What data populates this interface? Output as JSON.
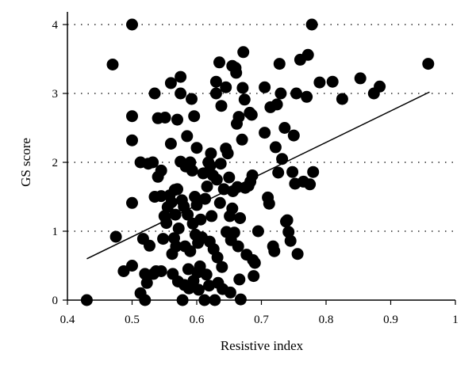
{
  "chart_data": {
    "type": "scatter",
    "xlabel": "Resistive index",
    "ylabel": "GS score",
    "xlim": [
      0.4,
      1.0
    ],
    "ylim": [
      0,
      4
    ],
    "x_ticks": [
      "0.4",
      "0.5",
      "0.6",
      "0.7",
      "0.8",
      "0.9",
      "1"
    ],
    "y_ticks": [
      "0",
      "1",
      "2",
      "3",
      "4"
    ],
    "grid": "horizontal dotted",
    "marker_color": "#000000",
    "trend_line": {
      "x1": 0.43,
      "y1": 0.6,
      "x2": 0.96,
      "y2": 3.02
    },
    "points": [
      [
        0.43,
        0.0
      ],
      [
        0.47,
        3.42
      ],
      [
        0.475,
        0.92
      ],
      [
        0.487,
        0.42
      ],
      [
        0.5,
        4.0
      ],
      [
        0.5,
        2.67
      ],
      [
        0.5,
        2.32
      ],
      [
        0.5,
        1.41
      ],
      [
        0.5,
        0.5
      ],
      [
        0.513,
        2.0
      ],
      [
        0.513,
        0.1
      ],
      [
        0.517,
        0.89
      ],
      [
        0.52,
        0.38
      ],
      [
        0.52,
        0.0
      ],
      [
        0.523,
        0.25
      ],
      [
        0.525,
        1.98
      ],
      [
        0.527,
        0.79
      ],
      [
        0.532,
        2.0
      ],
      [
        0.533,
        0.38
      ],
      [
        0.535,
        3.0
      ],
      [
        0.535,
        1.5
      ],
      [
        0.537,
        0.42
      ],
      [
        0.54,
        1.79
      ],
      [
        0.54,
        2.64
      ],
      [
        0.545,
        1.88
      ],
      [
        0.545,
        1.51
      ],
      [
        0.545,
        0.42
      ],
      [
        0.548,
        0.89
      ],
      [
        0.55,
        1.22
      ],
      [
        0.551,
        2.65
      ],
      [
        0.553,
        1.12
      ],
      [
        0.555,
        1.35
      ],
      [
        0.558,
        1.52
      ],
      [
        0.56,
        3.15
      ],
      [
        0.56,
        2.27
      ],
      [
        0.561,
        1.42
      ],
      [
        0.562,
        0.67
      ],
      [
        0.563,
        0.38
      ],
      [
        0.565,
        0.9
      ],
      [
        0.566,
        1.6
      ],
      [
        0.567,
        1.24
      ],
      [
        0.568,
        0.78
      ],
      [
        0.57,
        2.62
      ],
      [
        0.57,
        1.61
      ],
      [
        0.571,
        0.27
      ],
      [
        0.572,
        1.04
      ],
      [
        0.575,
        3.24
      ],
      [
        0.575,
        3.0
      ],
      [
        0.575,
        2.01
      ],
      [
        0.577,
        1.45
      ],
      [
        0.578,
        0.0
      ],
      [
        0.58,
        1.36
      ],
      [
        0.581,
        0.22
      ],
      [
        0.582,
        0.78
      ],
      [
        0.583,
        1.94
      ],
      [
        0.585,
        2.38
      ],
      [
        0.586,
        1.24
      ],
      [
        0.587,
        0.45
      ],
      [
        0.588,
        0.17
      ],
      [
        0.59,
        2.0
      ],
      [
        0.59,
        0.71
      ],
      [
        0.592,
        2.92
      ],
      [
        0.593,
        1.88
      ],
      [
        0.594,
        1.11
      ],
      [
        0.595,
        0.28
      ],
      [
        0.596,
        2.67
      ],
      [
        0.597,
        1.5
      ],
      [
        0.598,
        0.95
      ],
      [
        0.6,
        2.21
      ],
      [
        0.6,
        1.38
      ],
      [
        0.601,
        0.4
      ],
      [
        0.602,
        0.83
      ],
      [
        0.603,
        0.15
      ],
      [
        0.605,
        0.49
      ],
      [
        0.606,
        1.17
      ],
      [
        0.608,
        0.91
      ],
      [
        0.61,
        1.84
      ],
      [
        0.612,
        0.0
      ],
      [
        0.613,
        1.47
      ],
      [
        0.615,
        0.37
      ],
      [
        0.616,
        1.65
      ],
      [
        0.618,
        2.0
      ],
      [
        0.619,
        0.21
      ],
      [
        0.62,
        0.85
      ],
      [
        0.621,
        1.95
      ],
      [
        0.622,
        2.13
      ],
      [
        0.623,
        1.22
      ],
      [
        0.625,
        1.81
      ],
      [
        0.626,
        0.74
      ],
      [
        0.628,
        0.0
      ],
      [
        0.63,
        3.17
      ],
      [
        0.63,
        3.0
      ],
      [
        0.631,
        1.75
      ],
      [
        0.632,
        0.62
      ],
      [
        0.633,
        0.25
      ],
      [
        0.635,
        3.45
      ],
      [
        0.636,
        1.41
      ],
      [
        0.637,
        1.98
      ],
      [
        0.638,
        2.82
      ],
      [
        0.639,
        0.48
      ],
      [
        0.64,
        0.16
      ],
      [
        0.642,
        1.61
      ],
      [
        0.645,
        3.09
      ],
      [
        0.645,
        2.2
      ],
      [
        0.646,
        0.99
      ],
      [
        0.648,
        2.13
      ],
      [
        0.65,
        1.78
      ],
      [
        0.651,
        1.22
      ],
      [
        0.652,
        0.11
      ],
      [
        0.653,
        0.87
      ],
      [
        0.655,
        1.33
      ],
      [
        0.655,
        3.4
      ],
      [
        0.656,
        1.58
      ],
      [
        0.658,
        0.98
      ],
      [
        0.66,
        3.37
      ],
      [
        0.661,
        3.3
      ],
      [
        0.662,
        2.56
      ],
      [
        0.663,
        1.64
      ],
      [
        0.664,
        0.78
      ],
      [
        0.665,
        2.66
      ],
      [
        0.666,
        0.3
      ],
      [
        0.667,
        1.19
      ],
      [
        0.668,
        0.01
      ],
      [
        0.67,
        2.33
      ],
      [
        0.671,
        3.08
      ],
      [
        0.672,
        3.6
      ],
      [
        0.674,
        2.91
      ],
      [
        0.675,
        1.63
      ],
      [
        0.677,
        0.66
      ],
      [
        0.68,
        1.66
      ],
      [
        0.682,
        2.72
      ],
      [
        0.683,
        1.72
      ],
      [
        0.685,
        2.69
      ],
      [
        0.686,
        1.81
      ],
      [
        0.687,
        0.58
      ],
      [
        0.688,
        0.35
      ],
      [
        0.69,
        0.54
      ],
      [
        0.695,
        1.0
      ],
      [
        0.705,
        3.09
      ],
      [
        0.705,
        2.43
      ],
      [
        0.71,
        1.49
      ],
      [
        0.712,
        1.4
      ],
      [
        0.714,
        2.8
      ],
      [
        0.718,
        0.78
      ],
      [
        0.72,
        0.71
      ],
      [
        0.722,
        2.22
      ],
      [
        0.724,
        2.84
      ],
      [
        0.726,
        1.85
      ],
      [
        0.728,
        3.43
      ],
      [
        0.73,
        3.0
      ],
      [
        0.732,
        2.05
      ],
      [
        0.736,
        2.5
      ],
      [
        0.738,
        1.14
      ],
      [
        0.74,
        1.16
      ],
      [
        0.742,
        0.99
      ],
      [
        0.745,
        0.86
      ],
      [
        0.748,
        1.86
      ],
      [
        0.75,
        2.39
      ],
      [
        0.752,
        1.69
      ],
      [
        0.754,
        3.0
      ],
      [
        0.756,
        0.67
      ],
      [
        0.76,
        3.49
      ],
      [
        0.765,
        1.72
      ],
      [
        0.77,
        2.95
      ],
      [
        0.772,
        3.56
      ],
      [
        0.775,
        1.68
      ],
      [
        0.778,
        4.0
      ],
      [
        0.78,
        1.86
      ],
      [
        0.79,
        3.16
      ],
      [
        0.81,
        3.17
      ],
      [
        0.825,
        2.92
      ],
      [
        0.853,
        3.22
      ],
      [
        0.874,
        3.0
      ],
      [
        0.883,
        3.1
      ],
      [
        0.958,
        3.43
      ]
    ]
  }
}
